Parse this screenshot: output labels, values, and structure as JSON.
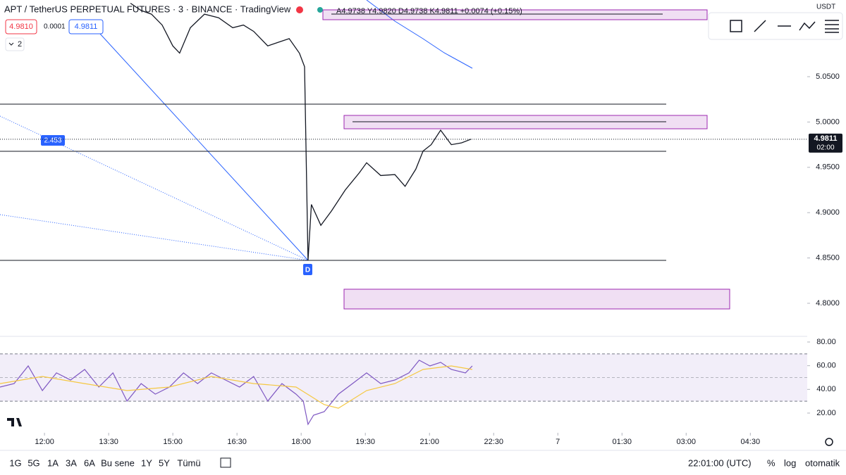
{
  "header": {
    "title": "APT / TetherUS PERPETUAL FUTURES · 3 · BINANCE · TradingView",
    "ohlc": "A4.9738 Y4.9820 D4.9738 K4.9811 +0.0074 (+0.15%)",
    "bid": "4.9810",
    "spread": "0.0001",
    "ask": "4.9811",
    "collapse": "2"
  },
  "currency": "USDT",
  "price_tag": {
    "price": "4.9811",
    "countdown": "02:00"
  },
  "annotations": {
    "fan_label": "2.453",
    "marker": "D"
  },
  "bottom_bar": {
    "ranges": [
      "1G",
      "5G",
      "1A",
      "3A",
      "6A",
      "Bu sene",
      "1Y",
      "5Y",
      "Tümü"
    ],
    "clock": "22:01:00 (UTC)",
    "percent": "%",
    "log": "log",
    "auto": "otomatik"
  },
  "chart_data": [
    {
      "type": "line",
      "color": "#131722",
      "x": [
        14.01,
        14.26,
        14.5,
        14.75,
        15.0,
        15.16,
        15.41,
        15.74,
        16.07,
        16.4,
        16.65,
        16.89,
        17.22,
        17.47,
        17.72,
        17.96,
        18.08,
        18.16,
        18.24,
        18.46,
        18.71,
        19.03,
        19.36,
        19.53,
        19.86,
        20.19,
        20.43,
        20.68,
        20.85,
        21.04,
        21.26,
        21.51,
        21.75,
        21.97
      ],
      "values": [
        5.131,
        5.123,
        5.119,
        5.107,
        5.084,
        5.076,
        5.104,
        5.119,
        5.115,
        5.104,
        5.107,
        5.1,
        5.084,
        5.088,
        5.092,
        5.076,
        5.061,
        4.847,
        4.909,
        4.886,
        4.902,
        4.925,
        4.944,
        4.955,
        4.941,
        4.942,
        4.929,
        4.948,
        4.968,
        4.975,
        4.991,
        4.975,
        4.977,
        4.981
      ],
      "xlim": [
        10.96,
        29.83
      ],
      "xticks": [
        {
          "value": 12,
          "label": "12:00"
        },
        {
          "value": 13.5,
          "label": "13:30"
        },
        {
          "value": 15,
          "label": "15:00"
        },
        {
          "value": 16.5,
          "label": "16:30"
        },
        {
          "value": 18,
          "label": "18:00"
        },
        {
          "value": 19.5,
          "label": "19:30"
        },
        {
          "value": 21,
          "label": "21:00"
        },
        {
          "value": 22.5,
          "label": "22:30"
        },
        {
          "value": 24,
          "label": "7"
        },
        {
          "value": 25.5,
          "label": "01:30"
        },
        {
          "value": 27,
          "label": "03:00"
        },
        {
          "value": 28.5,
          "label": "04:30"
        }
      ],
      "ylim": [
        4.7635,
        5.1346
      ],
      "yticks": [
        {
          "value": 4.8,
          "label": "4.8000"
        },
        {
          "value": 4.85,
          "label": "4.8500"
        },
        {
          "value": 4.9,
          "label": "4.9000"
        },
        {
          "value": 4.95,
          "label": "4.9500"
        },
        {
          "value": 5.0,
          "label": "5.0000"
        },
        {
          "value": 5.05,
          "label": "5.0500"
        }
      ]
    },
    {
      "type": "line",
      "series": [
        {
          "color": "#7e57c2",
          "x": [
            10.96,
            11.29,
            11.62,
            11.95,
            12.28,
            12.61,
            12.94,
            13.27,
            13.6,
            13.93,
            14.26,
            14.59,
            14.92,
            15.25,
            15.58,
            15.9,
            16.23,
            16.56,
            16.89,
            17.22,
            17.55,
            17.88,
            18.05,
            18.16,
            18.29,
            18.54,
            18.87,
            19.2,
            19.53,
            19.86,
            20.19,
            20.52,
            20.76,
            21.01,
            21.26,
            21.51,
            21.84,
            22.0
          ],
          "values": [
            42.0,
            44.9,
            59.8,
            39.0,
            53.9,
            47.9,
            56.8,
            42.0,
            53.9,
            30.1,
            44.9,
            36.0,
            42.0,
            53.9,
            44.9,
            53.9,
            47.9,
            42.0,
            50.9,
            30.1,
            44.9,
            36.0,
            30.1,
            10.5,
            18.2,
            21.2,
            36.0,
            44.9,
            53.9,
            44.9,
            47.9,
            53.9,
            64.6,
            59.8,
            62.8,
            56.8,
            53.9,
            59.8
          ]
        },
        {
          "color": "#f5c842",
          "x": [
            10.96,
            11.95,
            12.94,
            13.93,
            14.92,
            15.9,
            16.89,
            17.88,
            18.54,
            18.87,
            19.53,
            20.19,
            20.85,
            21.51,
            22.0
          ],
          "values": [
            44.9,
            50.9,
            44.9,
            39.0,
            42.0,
            50.9,
            44.9,
            42.0,
            27.1,
            24.1,
            39.0,
            44.9,
            56.8,
            59.8,
            56.8
          ]
        }
      ],
      "bands": [
        30,
        70
      ],
      "midline": 50,
      "band_color": "#7e57c2",
      "ylim": [
        3.36,
        84.75
      ],
      "yticks": [
        {
          "value": 20,
          "label": "20.00"
        },
        {
          "value": 40,
          "label": "40.00"
        },
        {
          "value": 60,
          "label": "60.00"
        },
        {
          "value": 80,
          "label": "80.00"
        }
      ]
    }
  ]
}
